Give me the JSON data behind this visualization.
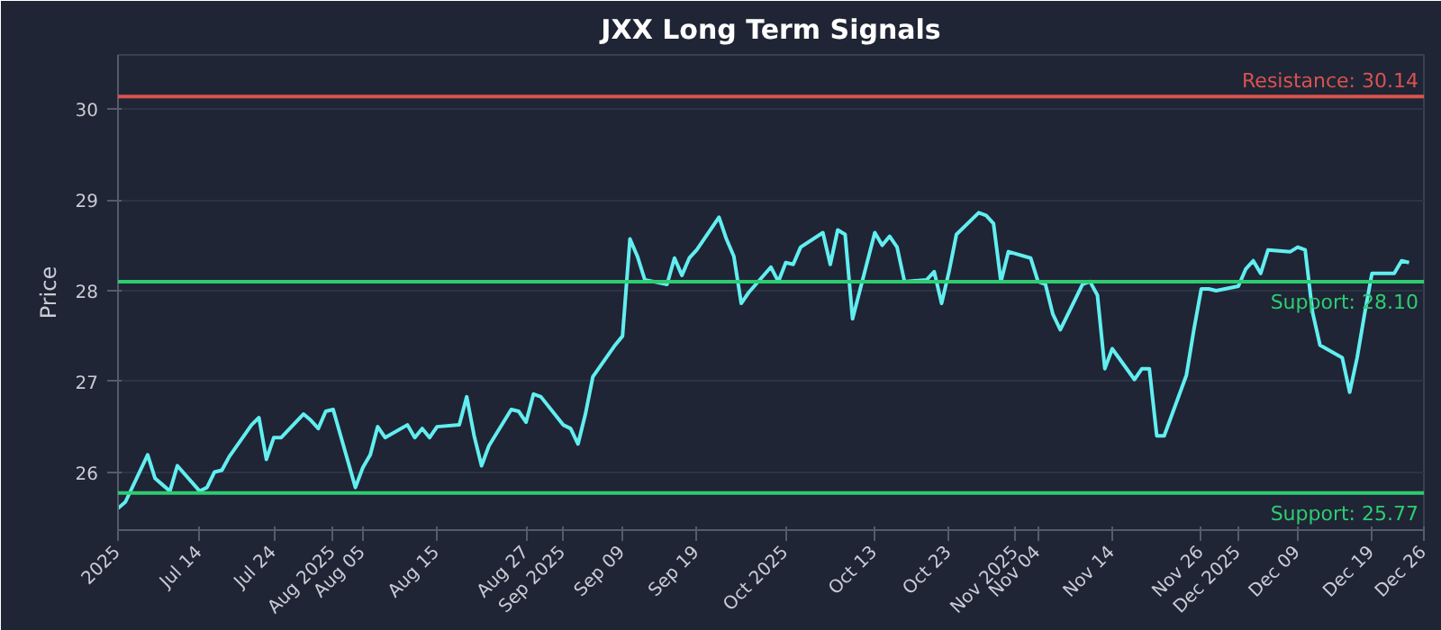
{
  "chart_data": {
    "type": "line",
    "title": "JXX Long Term Signals",
    "ylabel": "Price",
    "x": [
      "2025-07-03",
      "2025-07-04",
      "2025-07-07",
      "2025-07-08",
      "2025-07-09",
      "2025-07-10",
      "2025-07-11",
      "2025-07-14",
      "2025-07-15",
      "2025-07-16",
      "2025-07-17",
      "2025-07-18",
      "2025-07-21",
      "2025-07-22",
      "2025-07-23",
      "2025-07-24",
      "2025-07-25",
      "2025-07-28",
      "2025-07-29",
      "2025-07-30",
      "2025-07-31",
      "2025-08-01",
      "2025-08-04",
      "2025-08-05",
      "2025-08-06",
      "2025-08-07",
      "2025-08-08",
      "2025-08-11",
      "2025-08-12",
      "2025-08-13",
      "2025-08-14",
      "2025-08-15",
      "2025-08-18",
      "2025-08-19",
      "2025-08-20",
      "2025-08-21",
      "2025-08-22",
      "2025-08-25",
      "2025-08-26",
      "2025-08-27",
      "2025-08-28",
      "2025-08-29",
      "2025-09-01",
      "2025-09-02",
      "2025-09-03",
      "2025-09-04",
      "2025-09-05",
      "2025-09-08",
      "2025-09-09",
      "2025-09-10",
      "2025-09-11",
      "2025-09-12",
      "2025-09-15",
      "2025-09-16",
      "2025-09-17",
      "2025-09-18",
      "2025-09-19",
      "2025-09-22",
      "2025-09-23",
      "2025-09-24",
      "2025-09-25",
      "2025-09-26",
      "2025-09-29",
      "2025-09-30",
      "2025-10-01",
      "2025-10-02",
      "2025-10-03",
      "2025-10-06",
      "2025-10-07",
      "2025-10-08",
      "2025-10-09",
      "2025-10-10",
      "2025-10-13",
      "2025-10-14",
      "2025-10-15",
      "2025-10-16",
      "2025-10-17",
      "2025-10-20",
      "2025-10-21",
      "2025-10-22",
      "2025-10-23",
      "2025-10-24",
      "2025-10-27",
      "2025-10-28",
      "2025-10-29",
      "2025-10-30",
      "2025-10-31",
      "2025-11-03",
      "2025-11-04",
      "2025-11-05",
      "2025-11-06",
      "2025-11-07",
      "2025-11-10",
      "2025-11-11",
      "2025-11-12",
      "2025-11-13",
      "2025-11-14",
      "2025-11-17",
      "2025-11-18",
      "2025-11-19",
      "2025-11-20",
      "2025-11-21",
      "2025-11-24",
      "2025-11-25",
      "2025-11-26",
      "2025-11-27",
      "2025-11-28",
      "2025-12-01",
      "2025-12-02",
      "2025-12-03",
      "2025-12-04",
      "2025-12-05",
      "2025-12-08",
      "2025-12-09",
      "2025-12-10",
      "2025-12-11",
      "2025-12-12",
      "2025-12-15",
      "2025-12-16",
      "2025-12-17",
      "2025-12-18",
      "2025-12-19",
      "2025-12-22",
      "2025-12-23",
      "2025-12-24"
    ],
    "series": [
      {
        "color": "#62eef0",
        "values": [
          25.6,
          25.67,
          26.19,
          25.93,
          25.86,
          25.79,
          26.07,
          25.79,
          25.83,
          26.0,
          26.02,
          26.17,
          26.52,
          26.6,
          26.14,
          26.38,
          26.38,
          26.64,
          26.57,
          26.48,
          26.67,
          26.69,
          25.83,
          26.05,
          26.19,
          26.5,
          26.38,
          26.52,
          26.38,
          26.48,
          26.38,
          26.5,
          26.52,
          26.83,
          26.4,
          26.07,
          26.29,
          26.69,
          26.67,
          26.55,
          26.86,
          26.83,
          26.52,
          26.48,
          26.31,
          26.64,
          27.05,
          27.4,
          27.5,
          28.57,
          28.38,
          28.12,
          28.07,
          28.36,
          28.17,
          28.36,
          28.45,
          28.81,
          28.57,
          28.38,
          27.86,
          27.98,
          28.26,
          28.1,
          28.31,
          28.29,
          28.48,
          28.64,
          28.29,
          28.67,
          28.62,
          27.69,
          28.64,
          28.5,
          28.6,
          28.48,
          28.1,
          28.12,
          28.21,
          27.86,
          28.21,
          28.62,
          28.86,
          28.83,
          28.74,
          28.1,
          28.43,
          28.36,
          28.1,
          28.07,
          27.74,
          27.57,
          28.07,
          28.1,
          27.95,
          27.14,
          27.36,
          27.02,
          27.14,
          27.14,
          26.4,
          26.4,
          27.07,
          27.57,
          28.02,
          28.02,
          28.0,
          28.05,
          28.24,
          28.33,
          28.19,
          28.45,
          28.43,
          28.48,
          28.45,
          27.76,
          27.4,
          27.26,
          26.88,
          27.26,
          27.74,
          28.19,
          28.19,
          28.33,
          28.31
        ]
      }
    ],
    "xlim": [
      "2025-07-03",
      "2025-12-26"
    ],
    "xticks": [
      {
        "value": "2025-07-03",
        "label": "2025"
      },
      {
        "value": "2025-07-14",
        "label": "Jul 14"
      },
      {
        "value": "2025-07-24",
        "label": "Jul 24"
      },
      {
        "value": "2025-08-01",
        "label": "Aug 2025"
      },
      {
        "value": "2025-08-05",
        "label": "Aug 05"
      },
      {
        "value": "2025-08-15",
        "label": "Aug 15"
      },
      {
        "value": "2025-08-27",
        "label": "Aug 27"
      },
      {
        "value": "2025-09-01",
        "label": "Sep 2025"
      },
      {
        "value": "2025-09-09",
        "label": "Sep 09"
      },
      {
        "value": "2025-09-19",
        "label": "Sep 19"
      },
      {
        "value": "2025-10-01",
        "label": "Oct 2025"
      },
      {
        "value": "2025-10-13",
        "label": "Oct 13"
      },
      {
        "value": "2025-10-23",
        "label": "Oct 23"
      },
      {
        "value": "2025-11-01",
        "label": "Nov 2025"
      },
      {
        "value": "2025-11-04",
        "label": "Nov 04"
      },
      {
        "value": "2025-11-14",
        "label": "Nov 14"
      },
      {
        "value": "2025-11-26",
        "label": "Nov 26"
      },
      {
        "value": "2025-12-01",
        "label": "Dec 2025"
      },
      {
        "value": "2025-12-09",
        "label": "Dec 09"
      },
      {
        "value": "2025-12-19",
        "label": "Dec 19"
      },
      {
        "value": "2025-12-26",
        "label": "Dec 26"
      }
    ],
    "ylim": [
      25.36,
      30.6
    ],
    "yticks": [
      26,
      27,
      28,
      29,
      30
    ],
    "grid": "y",
    "ref_lines": [
      {
        "axis": "y",
        "value": 30.14,
        "label": "Resistance: 30.14",
        "color": "#d9534f"
      },
      {
        "axis": "y",
        "value": 28.1,
        "label": "Support: 28.10",
        "color": "#2ecc71"
      },
      {
        "axis": "y",
        "value": 25.77,
        "label": "Support: 25.77",
        "color": "#2ecc71"
      }
    ]
  }
}
